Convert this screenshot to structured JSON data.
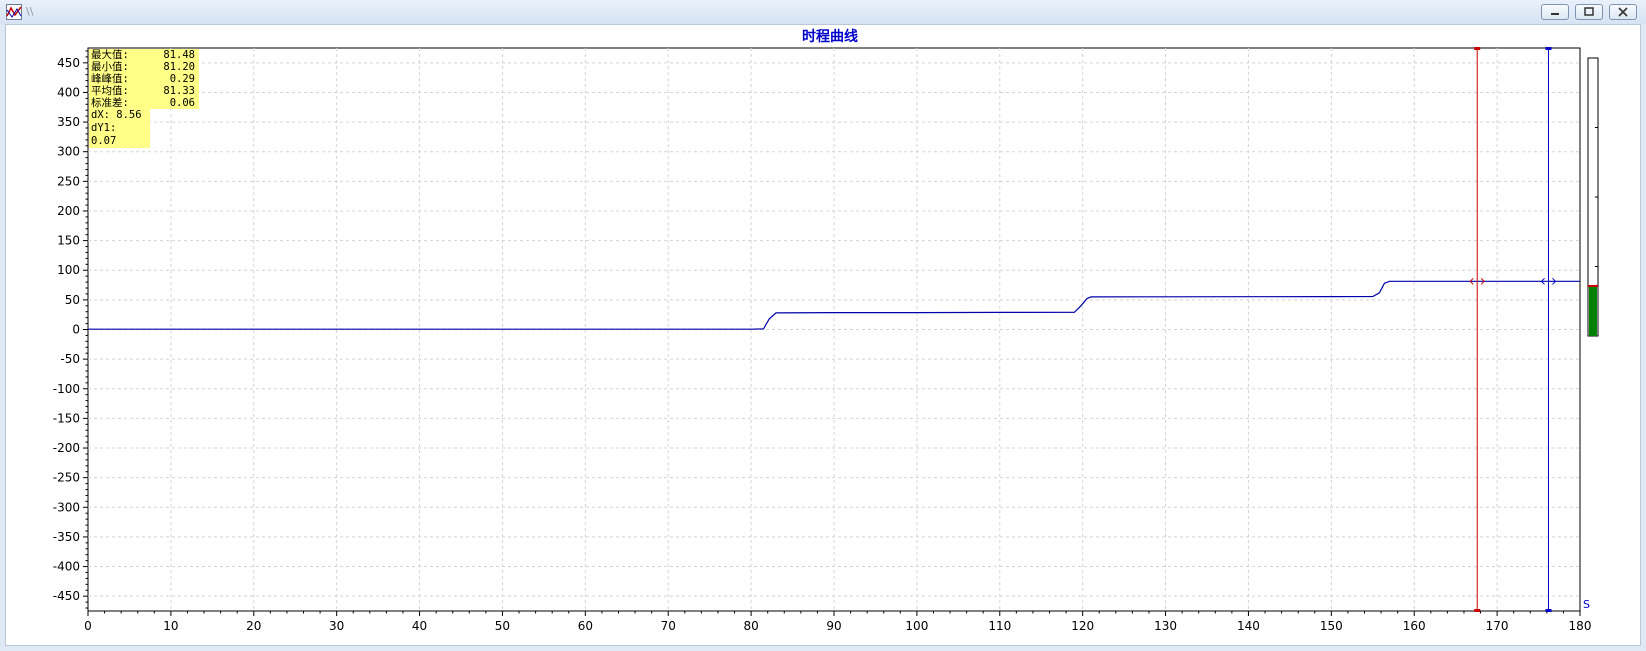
{
  "window": {
    "title": "\\\\",
    "buttons": {
      "minimize": "minimize",
      "restore": "restore",
      "close": "close"
    }
  },
  "stats": {
    "rows": [
      {
        "label": "最大值:",
        "value": "81.48"
      },
      {
        "label": "最小值:",
        "value": "81.20"
      },
      {
        "label": "峰峰值:",
        "value": "0.29"
      },
      {
        "label": "平均值:",
        "value": "81.33"
      },
      {
        "label": "标准差:",
        "value": "0.06"
      }
    ],
    "dx": "dX: 8.56",
    "dy": "dY1: 0.07"
  },
  "unit_label": "S",
  "chart_data": {
    "type": "line",
    "title": "时程曲线",
    "xlabel": "",
    "ylabel": "",
    "xlim": [
      0,
      180
    ],
    "ylim": [
      -475,
      475
    ],
    "x_ticks": [
      0,
      10,
      20,
      30,
      40,
      50,
      60,
      70,
      80,
      90,
      100,
      110,
      120,
      130,
      140,
      150,
      160,
      170,
      180
    ],
    "y_ticks": [
      450,
      400,
      350,
      300,
      250,
      200,
      150,
      100,
      50,
      0,
      -50,
      -100,
      -150,
      -200,
      -250,
      -300,
      -350,
      -400,
      -450
    ],
    "grid": true,
    "series": [
      {
        "color": "#0000aa",
        "x": [
          0,
          20,
          40,
          60,
          80,
          81.5,
          82.2,
          83,
          90,
          100,
          110,
          119,
          119.8,
          120.5,
          121,
          130,
          140,
          150,
          155,
          155.8,
          156.4,
          157,
          165,
          170,
          175,
          180
        ],
        "y": [
          0.5,
          0.5,
          0.5,
          0.5,
          0.5,
          1,
          18,
          28,
          28.5,
          28.5,
          28.8,
          29,
          40,
          52,
          55,
          55.2,
          55.4,
          55.5,
          55.6,
          62,
          78,
          81.3,
          81.3,
          81.3,
          81.3,
          81.3
        ]
      }
    ],
    "cursors": [
      {
        "x": 167.6,
        "color": "#cc0000"
      },
      {
        "x": 176.2,
        "color": "#0000cc"
      }
    ],
    "level_meter": {
      "fraction": 0.18,
      "color": "#008000"
    }
  }
}
